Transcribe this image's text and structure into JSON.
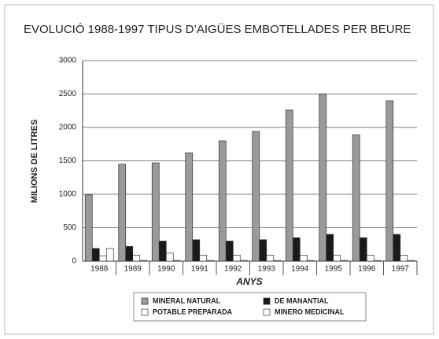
{
  "chart_data": {
    "type": "bar",
    "title": "EVOLUCIÓ 1988-1997 TIPUS D’AIGÜES EMBOTELLADES PER BEURE",
    "x_label": "ANYS",
    "y_label": "MILIONS DE LITRES",
    "categories": [
      "1988",
      "1989",
      "1990",
      "1991",
      "1992",
      "1993",
      "1994",
      "1995",
      "1996",
      "1997"
    ],
    "series": [
      {
        "name": "MINERAL NATURAL",
        "color": "#9a9a9a",
        "values": [
          990,
          1450,
          1470,
          1620,
          1800,
          1940,
          2260,
          2500,
          1890,
          2400
        ]
      },
      {
        "name": "DE MANANTIAL",
        "color": "#1a1a1a",
        "values": [
          190,
          220,
          300,
          320,
          300,
          320,
          350,
          400,
          350,
          400
        ]
      },
      {
        "name": "POTABLE PREPARADA",
        "color": "#ffffff",
        "values": [
          80,
          90,
          120,
          90,
          90,
          90,
          90,
          90,
          90,
          90
        ]
      },
      {
        "name": "MINERO MEDICINAL",
        "color": "#ffffff",
        "values": [
          190,
          10,
          10,
          10,
          10,
          10,
          10,
          10,
          10,
          10
        ]
      }
    ],
    "ylim": [
      0,
      3000
    ],
    "yticks": [
      0,
      500,
      1000,
      1500,
      2000,
      2500,
      3000
    ],
    "grid": true,
    "legend": "bottom"
  }
}
